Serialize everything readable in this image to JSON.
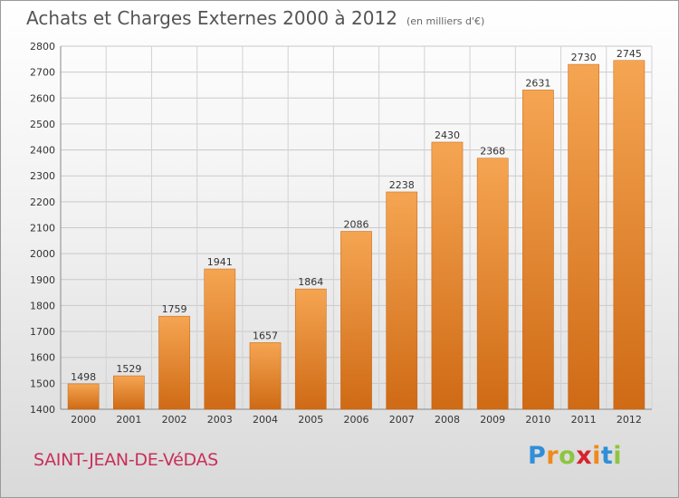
{
  "header": {
    "title": "Achats et Charges Externes 2000 à 2012",
    "unit": "(en milliers d'€)"
  },
  "footer": {
    "city": "SAINT-JEAN-DE-VéDAS",
    "logo": {
      "letters": [
        "P",
        "r",
        "o",
        "x",
        "i",
        "t",
        "i"
      ],
      "colors": [
        "#2f8fd8",
        "#ef8a1c",
        "#8cc63f",
        "#d6232e",
        "#ef8a1c",
        "#2f8fd8",
        "#8cc63f"
      ]
    }
  },
  "chart_data": {
    "type": "bar",
    "title": "Achats et Charges Externes 2000 à 2012",
    "subtitle": "(en milliers d'€)",
    "categories": [
      "2000",
      "2001",
      "2002",
      "2003",
      "2004",
      "2005",
      "2006",
      "2007",
      "2008",
      "2009",
      "2010",
      "2011",
      "2012"
    ],
    "values": [
      1498,
      1529,
      1759,
      1941,
      1657,
      1864,
      2086,
      2238,
      2430,
      2368,
      2631,
      2730,
      2745
    ],
    "ylim": [
      1400,
      2800
    ],
    "yticks": [
      1400,
      1500,
      1600,
      1700,
      1800,
      1900,
      2000,
      2100,
      2200,
      2300,
      2400,
      2500,
      2600,
      2700,
      2800
    ],
    "grid": true,
    "bar_color": "#f0923a",
    "bar_color_dark": "#cf6a15",
    "xlabel": "",
    "ylabel": ""
  }
}
